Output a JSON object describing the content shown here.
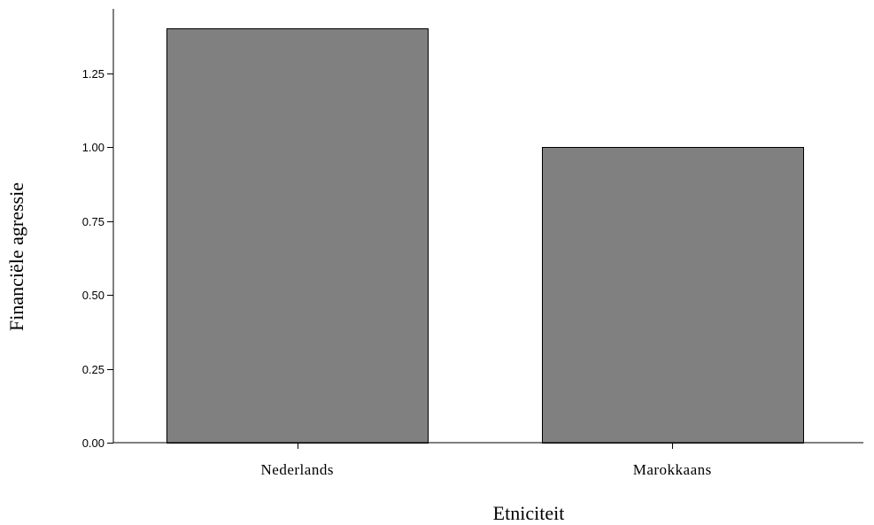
{
  "chart_data": {
    "type": "bar",
    "categories": [
      "Nederlands",
      "Marokkaans"
    ],
    "values": [
      1.4,
      1.0
    ],
    "xlabel": "Etniciteit",
    "ylabel": "Financiële agressie",
    "ylim": [
      0,
      1.45
    ],
    "yticks": [
      0,
      0.25,
      0.5,
      0.75,
      1.0,
      1.25
    ],
    "ytick_labels": [
      "0.00",
      "0.25",
      "0.50",
      "0.75",
      "1.00",
      "1.25"
    ],
    "grid": false,
    "bar_color": "#808080",
    "bar_outline_color": "#000000"
  }
}
